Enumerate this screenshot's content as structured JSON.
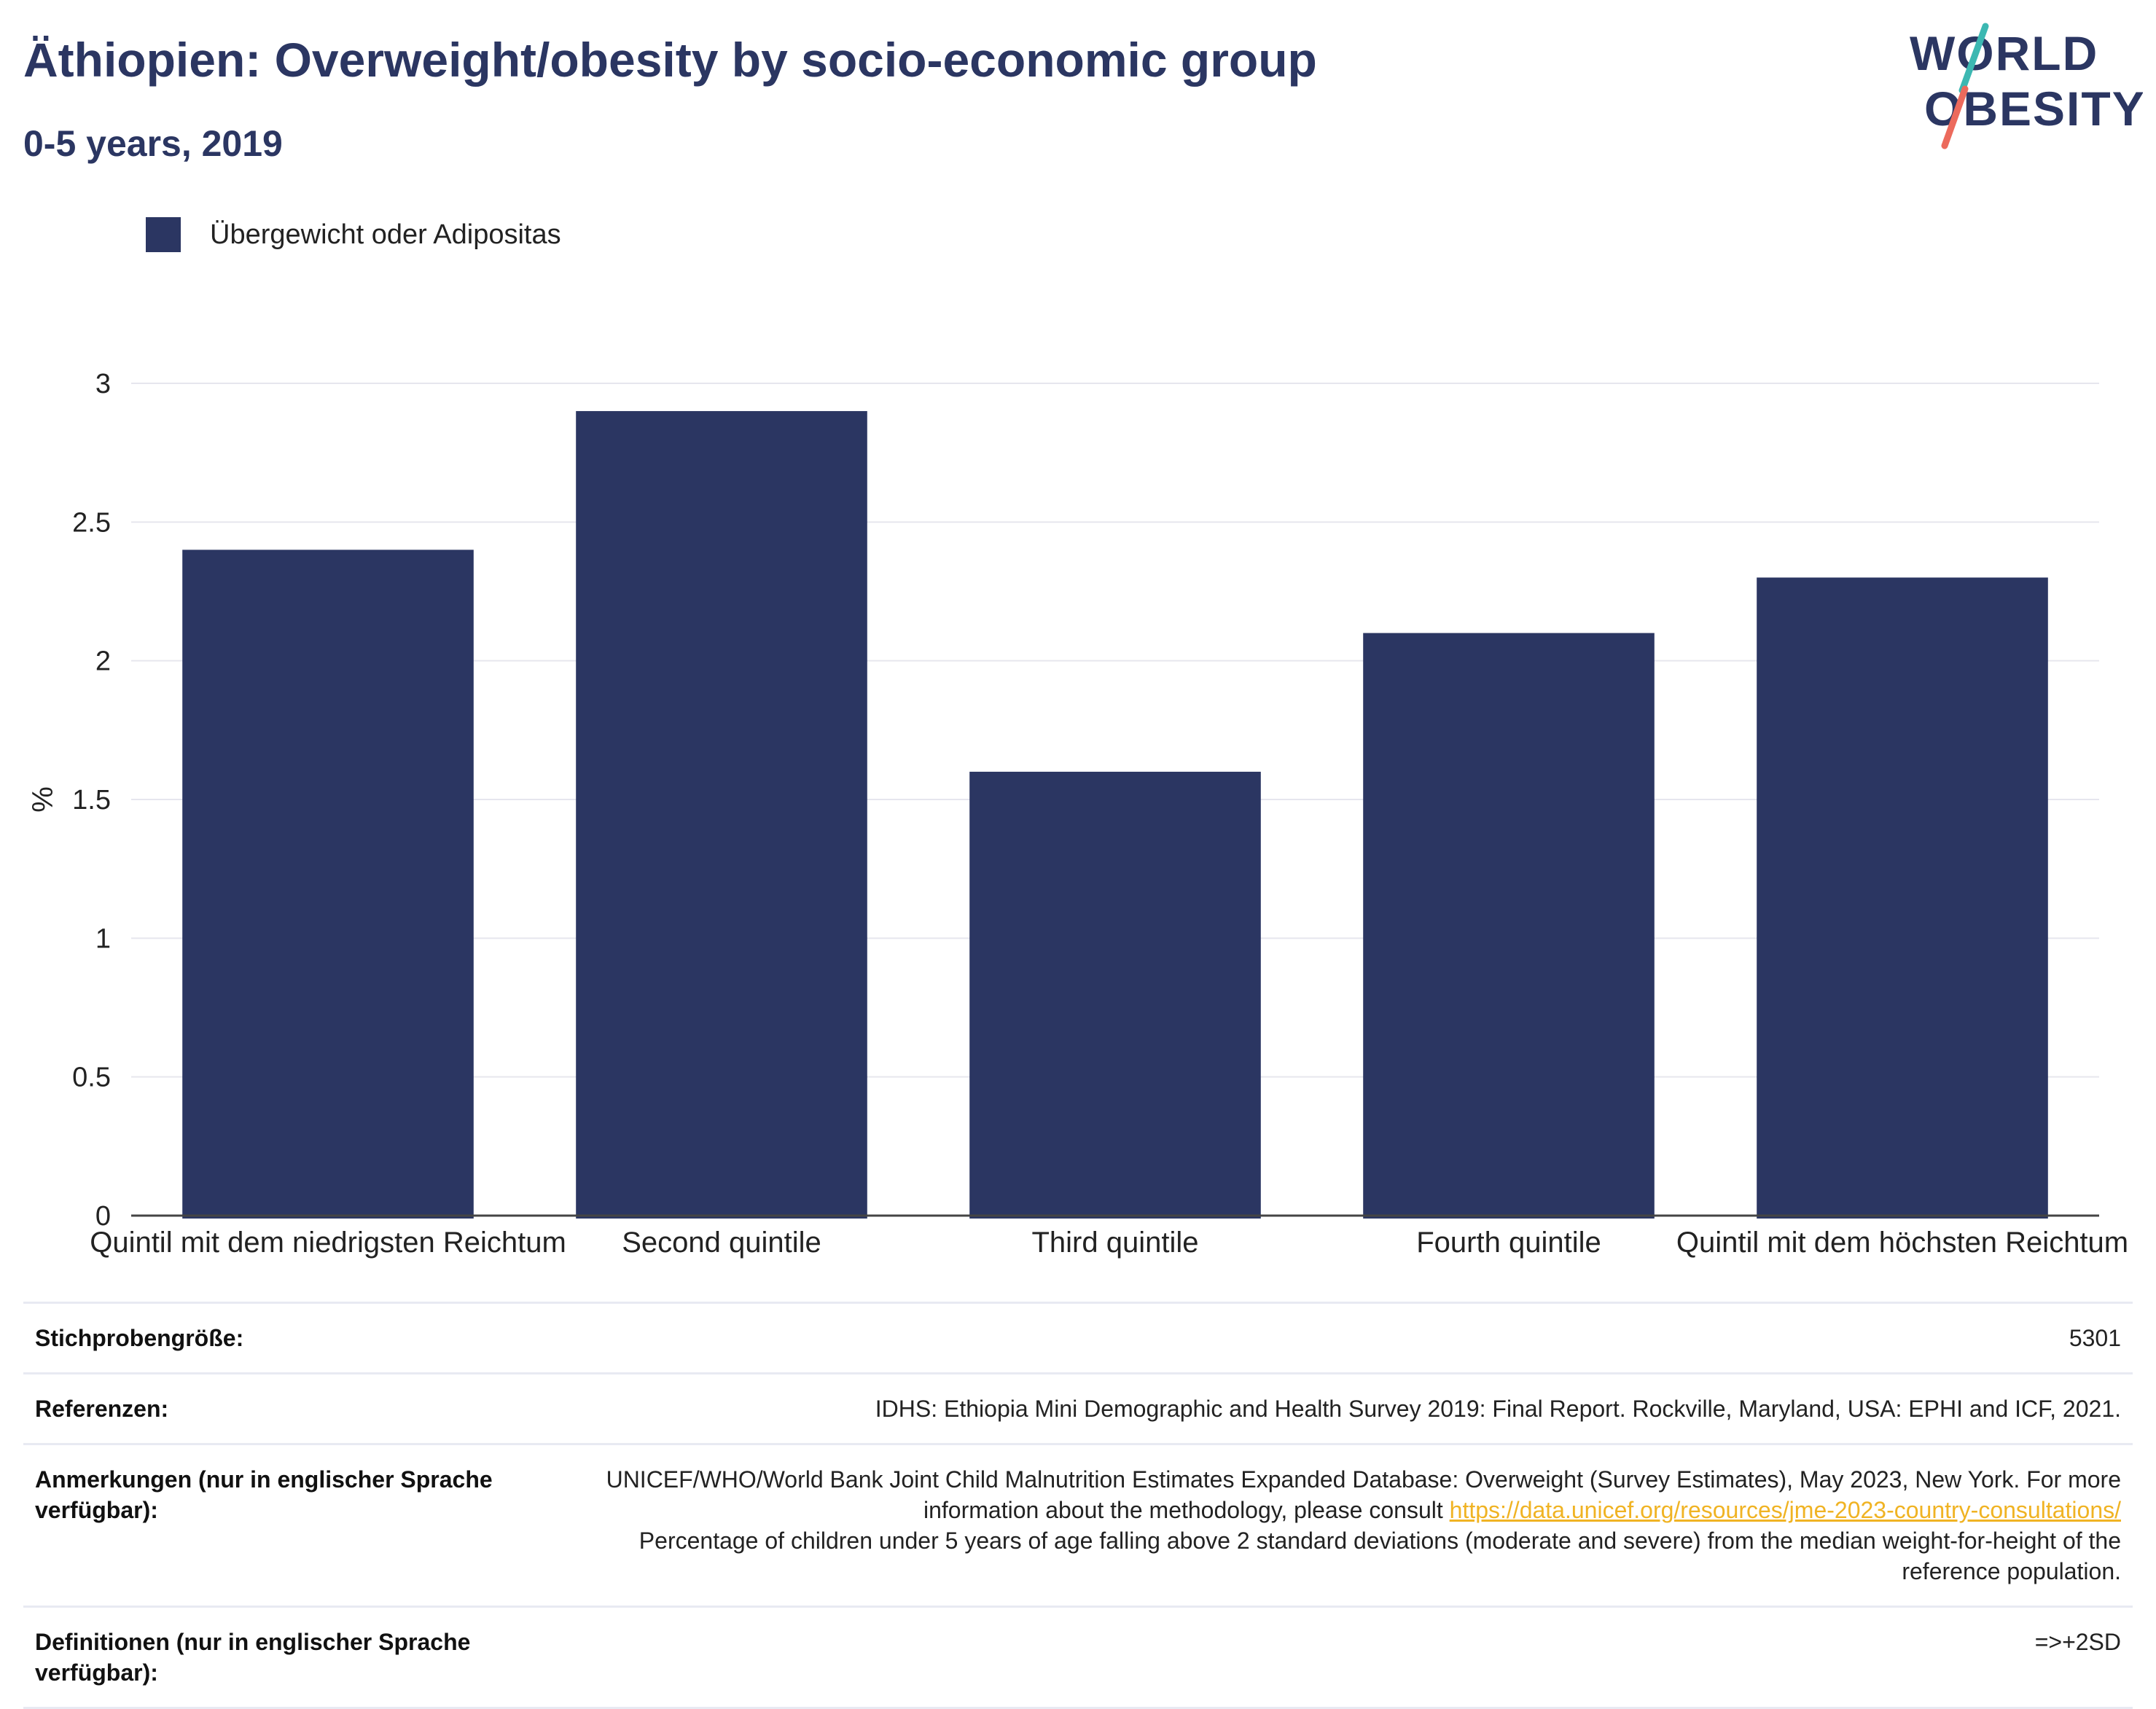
{
  "header": {
    "title": "Äthiopien: Overweight/obesity by socio-economic group",
    "subtitle": "0-5 years, 2019"
  },
  "logo": {
    "line1": "WORLD",
    "line2": "OBESITY",
    "colors": {
      "text": "#2b3662",
      "slash_top": "#3cb8b2",
      "slash_bottom": "#ec6a5c"
    }
  },
  "legend": {
    "label": "Übergewicht oder Adipositas",
    "color": "#2b3662"
  },
  "chart_data": {
    "type": "bar",
    "categories": [
      "Quintil mit dem niedrigsten Reichtum",
      "Second quintile",
      "Third quintile",
      "Fourth quintile",
      "Quintil mit dem höchsten Reichtum"
    ],
    "series": [
      {
        "name": "Übergewicht oder Adipositas",
        "values": [
          2.4,
          2.9,
          1.6,
          2.1,
          2.3
        ],
        "color": "#2b3662"
      }
    ],
    "ylabel": "%",
    "ylim": [
      0,
      3
    ],
    "yticks": [
      "0",
      "0.5",
      "1",
      "1.5",
      "2",
      "2.5",
      "3"
    ],
    "grid": true,
    "legend_position": "top-left"
  },
  "meta": {
    "sample_size": {
      "label": "Stichprobengröße:",
      "value": "5301"
    },
    "references": {
      "label": "Referenzen:",
      "value": "IDHS: Ethiopia Mini Demographic and Health Survey 2019: Final Report. Rockville, Maryland, USA: EPHI and ICF, 2021."
    },
    "notes": {
      "label": "Anmerkungen (nur in englischer Sprache verfügbar):",
      "text_before_link": "UNICEF/WHO/World Bank Joint Child Malnutrition Estimates Expanded Database: Overweight (Survey Estimates), May 2023, New York. For more information about the methodology, please consult ",
      "link": "https://data.unicef.org/resources/jme-2023-country-consultations/",
      "text_after_link": "Percentage of children under 5 years of age falling above 2 standard deviations (moderate and severe) from the median weight-for-height of the reference population."
    },
    "definitions": {
      "label": "Definitionen (nur in englischer Sprache verfügbar):",
      "value": "=>+2SD"
    }
  }
}
